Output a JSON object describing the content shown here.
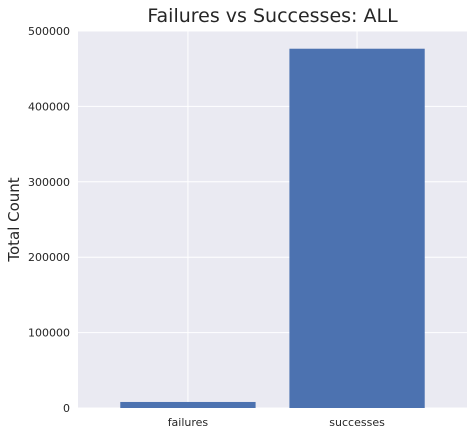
{
  "chart_data": {
    "type": "bar",
    "title": "Failures vs Successes: ALL",
    "xlabel": "",
    "ylabel": "Total Count",
    "categories": [
      "failures",
      "successes"
    ],
    "values": [
      8000,
      476500
    ],
    "ylim": [
      0,
      500000
    ],
    "yticks": [
      "0",
      "100000",
      "200000",
      "300000",
      "400000",
      "500000"
    ],
    "grid": true,
    "bar_color": "#4c72b0",
    "background_color": "#eaeaf2"
  }
}
